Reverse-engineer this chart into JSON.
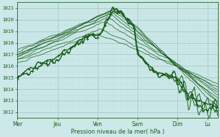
{
  "xlabel": "Pression niveau de la mer( hPa )",
  "bg_color": "#cce8e8",
  "grid_major_color": "#aacccc",
  "grid_minor_color": "#bbdddd",
  "line_color": "#1a5c1a",
  "ylim": [
    1011.5,
    1021.5
  ],
  "yticks": [
    1012,
    1013,
    1014,
    1015,
    1016,
    1017,
    1018,
    1019,
    1020,
    1021
  ],
  "day_labels": [
    "Mer",
    "Jeu",
    "Ven",
    "Sam",
    "Dim",
    "Lu"
  ],
  "day_positions": [
    0,
    48,
    96,
    144,
    192,
    228
  ],
  "xlim": [
    0,
    240
  ],
  "num_points": 241
}
